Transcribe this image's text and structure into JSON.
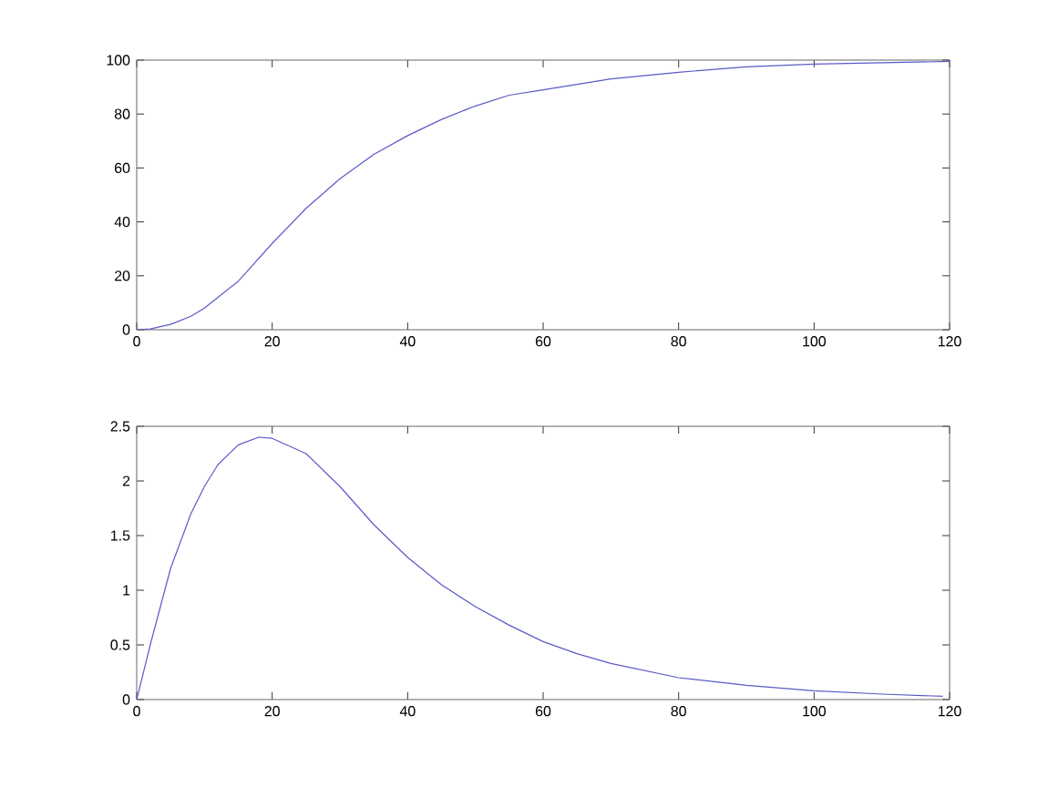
{
  "chart_data": [
    {
      "type": "line",
      "x": [
        0,
        2,
        5,
        8,
        10,
        15,
        20,
        25,
        30,
        35,
        40,
        45,
        50,
        55,
        60,
        70,
        80,
        90,
        100,
        110,
        120
      ],
      "series": [
        {
          "color": "#5a5ac8",
          "values": [
            0,
            0.3,
            2,
            5,
            8,
            18,
            32,
            45,
            56,
            65,
            72,
            78,
            83,
            87,
            89,
            93,
            95.5,
            97.5,
            98.5,
            99,
            99.5
          ]
        }
      ],
      "xlim": [
        0,
        120
      ],
      "xticks": [
        0,
        20,
        40,
        60,
        80,
        100,
        120
      ],
      "ylim": [
        0,
        100
      ],
      "yticks": [
        0,
        20,
        40,
        60,
        80,
        100
      ],
      "marker": "none",
      "line_style": "solid"
    },
    {
      "type": "line",
      "x": [
        0,
        2,
        5,
        8,
        10,
        12,
        15,
        18,
        20,
        25,
        30,
        35,
        40,
        45,
        50,
        55,
        60,
        65,
        70,
        80,
        90,
        100,
        110,
        119
      ],
      "series": [
        {
          "color": "#5a5ac8",
          "values": [
            0,
            0.5,
            1.2,
            1.7,
            1.95,
            2.15,
            2.33,
            2.4,
            2.39,
            2.25,
            1.95,
            1.6,
            1.3,
            1.05,
            0.85,
            0.68,
            0.53,
            0.42,
            0.33,
            0.2,
            0.13,
            0.08,
            0.05,
            0.03
          ]
        }
      ],
      "xlim": [
        0,
        120
      ],
      "xticks": [
        0,
        20,
        40,
        60,
        80,
        100,
        120
      ],
      "ylim": [
        0,
        2.5
      ],
      "yticks": [
        0,
        0.5,
        1,
        1.5,
        2,
        2.5
      ],
      "marker": "none",
      "line_style": "solid"
    }
  ]
}
